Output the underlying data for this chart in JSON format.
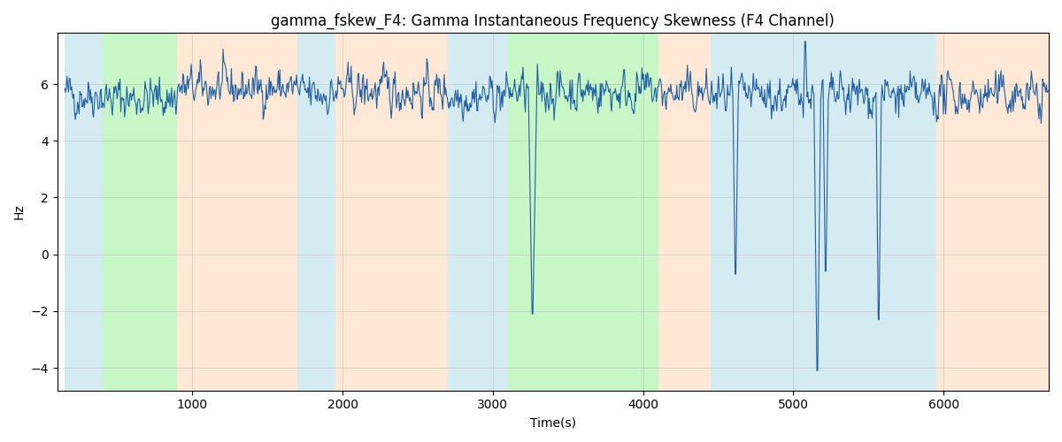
{
  "title": "gamma_fskew_F4: Gamma Instantaneous Frequency Skewness (F4 Channel)",
  "xlabel": "Time(s)",
  "ylabel": "Hz",
  "xlim": [
    100,
    6700
  ],
  "ylim": [
    -4.8,
    7.8
  ],
  "line_color": "#1f5fa6",
  "line_width": 0.8,
  "bg_regions": [
    {
      "xmin": 150,
      "xmax": 400,
      "color": "#add8e6",
      "alpha": 0.5
    },
    {
      "xmin": 400,
      "xmax": 900,
      "color": "#90ee90",
      "alpha": 0.5
    },
    {
      "xmin": 900,
      "xmax": 1700,
      "color": "#ffdab9",
      "alpha": 0.6
    },
    {
      "xmin": 1700,
      "xmax": 1950,
      "color": "#add8e6",
      "alpha": 0.5
    },
    {
      "xmin": 1950,
      "xmax": 2700,
      "color": "#ffdab9",
      "alpha": 0.6
    },
    {
      "xmin": 2700,
      "xmax": 3100,
      "color": "#add8e6",
      "alpha": 0.5
    },
    {
      "xmin": 3100,
      "xmax": 4100,
      "color": "#90ee90",
      "alpha": 0.5
    },
    {
      "xmin": 4100,
      "xmax": 4450,
      "color": "#ffdab9",
      "alpha": 0.6
    },
    {
      "xmin": 4450,
      "xmax": 5950,
      "color": "#add8e6",
      "alpha": 0.5
    },
    {
      "xmin": 5950,
      "xmax": 6700,
      "color": "#ffdab9",
      "alpha": 0.6
    }
  ],
  "seed": 42,
  "n_points": 1300,
  "t_start": 150,
  "t_end": 6700,
  "base_value": 5.65,
  "noise_std": 0.38,
  "yticks": [
    -4,
    -2,
    0,
    2,
    4,
    6
  ],
  "title_fontsize": 12,
  "label_fontsize": 10,
  "grid_color": "#aaaaaa",
  "grid_alpha": 0.5,
  "grid_lw": 0.5
}
